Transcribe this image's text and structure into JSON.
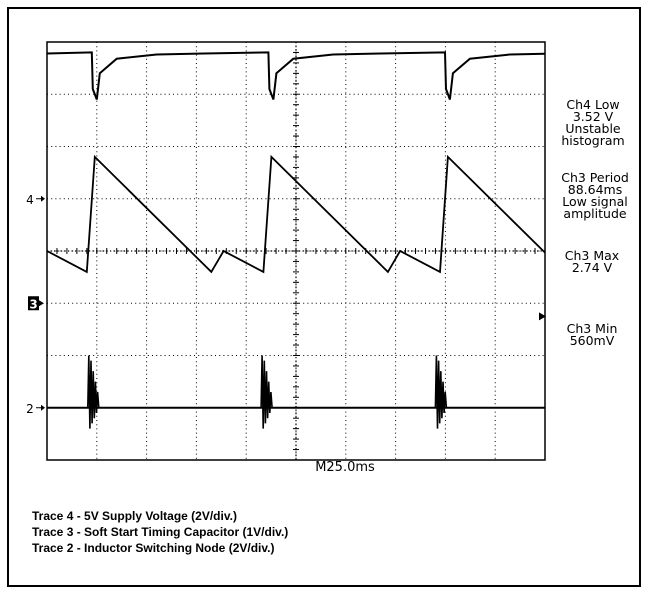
{
  "chart_data": {
    "type": "line",
    "title": "",
    "timebase": "M25.0ms",
    "grid": true,
    "x_divisions": 10,
    "y_divisions": 8,
    "channel_markers": [
      {
        "label": "4",
        "style": "plain"
      },
      {
        "label": "3",
        "style": "boxed"
      },
      {
        "label": "2",
        "style": "plain"
      }
    ],
    "series": [
      {
        "name": "Trace 4",
        "channel": 4,
        "period_ms": 88.64,
        "points_div": [
          [
            0,
            7.78
          ],
          [
            0.9,
            7.8
          ],
          [
            0.92,
            7.1
          ],
          [
            1.0,
            6.9
          ],
          [
            1.06,
            7.4
          ],
          [
            1.4,
            7.68
          ],
          [
            2.2,
            7.76
          ],
          [
            3.15,
            7.78
          ]
        ]
      },
      {
        "name": "Trace 3",
        "channel": 3,
        "period_ms": 88.64,
        "points_div": [
          [
            0,
            4.0
          ],
          [
            0.8,
            3.6
          ],
          [
            0.96,
            5.8
          ],
          [
            3.3,
            3.6
          ]
        ]
      },
      {
        "name": "Trace 2",
        "channel": 2,
        "period_ms": 88.64,
        "points_div": [
          [
            0,
            1.0
          ],
          [
            3.55,
            1.0
          ]
        ],
        "ringing_at_div": [
          0.82,
          4.3,
          7.8
        ]
      }
    ]
  },
  "measurements": [
    {
      "lines": [
        "Ch4 Low",
        "3.52 V",
        "Unstable",
        "histogram"
      ]
    },
    {
      "lines": [
        "Ch3 Period",
        "88.64ms",
        "Low signal",
        "amplitude"
      ]
    },
    {
      "lines": [
        "Ch3 Max",
        "2.74 V"
      ]
    },
    {
      "lines": [
        "Ch3 Min",
        "560mV"
      ]
    }
  ],
  "legend": [
    "Trace 4 - 5V Supply Voltage (2V/div.)",
    "Trace 3 - Soft Start Timing Capacitor (1V/div.)",
    "Trace 2 - Inductor Switching Node (2V/div.)"
  ]
}
